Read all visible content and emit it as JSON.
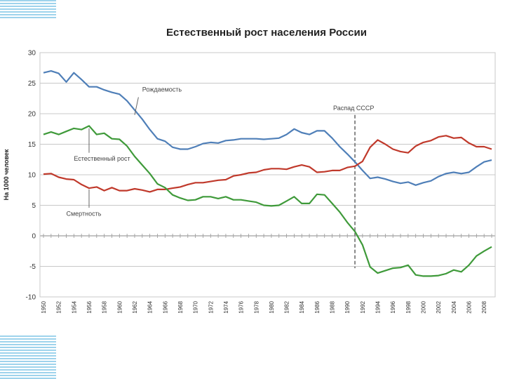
{
  "chart_data": {
    "type": "line",
    "title": "Естественный рост населения России",
    "ylabel": "На 1000 человек",
    "xlabel": "",
    "ylim": [
      -10,
      30
    ],
    "xlim": [
      1950,
      2009
    ],
    "yticks": [
      30,
      25,
      20,
      15,
      10,
      5,
      0,
      -5,
      -10
    ],
    "xticks": [
      1950,
      1952,
      1954,
      1956,
      1958,
      1960,
      1962,
      1964,
      1966,
      1968,
      1970,
      1972,
      1974,
      1976,
      1978,
      1980,
      1982,
      1984,
      1986,
      1988,
      1990,
      1992,
      1994,
      1996,
      1998,
      2000,
      2002,
      2004,
      2006,
      2008
    ],
    "grid": true,
    "colors": {
      "birth": "#4f7fb8",
      "death": "#c0392b",
      "natural": "#3f9a3a"
    },
    "annotations": [
      {
        "text": "Рождаемость",
        "series": "birth"
      },
      {
        "text": "Естественный рост",
        "series": "natural"
      },
      {
        "text": "Смертность",
        "series": "death"
      },
      {
        "text": "Распад СССР",
        "x": 1991
      }
    ],
    "series": [
      {
        "key": "birth",
        "values": [
          [
            1950,
            26.7
          ],
          [
            1951,
            27.0
          ],
          [
            1952,
            26.6
          ],
          [
            1953,
            25.2
          ],
          [
            1954,
            26.7
          ],
          [
            1955,
            25.6
          ],
          [
            1956,
            24.4
          ],
          [
            1957,
            24.4
          ],
          [
            1958,
            23.9
          ],
          [
            1959,
            23.5
          ],
          [
            1960,
            23.2
          ],
          [
            1961,
            22.1
          ],
          [
            1962,
            20.6
          ],
          [
            1963,
            19.1
          ],
          [
            1964,
            17.4
          ],
          [
            1965,
            15.9
          ],
          [
            1966,
            15.5
          ],
          [
            1967,
            14.5
          ],
          [
            1968,
            14.2
          ],
          [
            1969,
            14.2
          ],
          [
            1970,
            14.6
          ],
          [
            1971,
            15.1
          ],
          [
            1972,
            15.3
          ],
          [
            1973,
            15.2
          ],
          [
            1974,
            15.6
          ],
          [
            1975,
            15.7
          ],
          [
            1976,
            15.9
          ],
          [
            1977,
            15.9
          ],
          [
            1978,
            15.9
          ],
          [
            1979,
            15.8
          ],
          [
            1980,
            15.9
          ],
          [
            1981,
            16.0
          ],
          [
            1982,
            16.6
          ],
          [
            1983,
            17.5
          ],
          [
            1984,
            16.9
          ],
          [
            1985,
            16.6
          ],
          [
            1986,
            17.2
          ],
          [
            1987,
            17.2
          ],
          [
            1988,
            16.0
          ],
          [
            1989,
            14.6
          ],
          [
            1990,
            13.4
          ],
          [
            1991,
            12.1
          ],
          [
            1992,
            10.7
          ],
          [
            1993,
            9.4
          ],
          [
            1994,
            9.6
          ],
          [
            1995,
            9.3
          ],
          [
            1996,
            8.9
          ],
          [
            1997,
            8.6
          ],
          [
            1998,
            8.8
          ],
          [
            1999,
            8.3
          ],
          [
            2000,
            8.7
          ],
          [
            2001,
            9.0
          ],
          [
            2002,
            9.7
          ],
          [
            2003,
            10.2
          ],
          [
            2004,
            10.4
          ],
          [
            2005,
            10.2
          ],
          [
            2006,
            10.4
          ],
          [
            2007,
            11.3
          ],
          [
            2008,
            12.1
          ],
          [
            2009,
            12.4
          ]
        ]
      },
      {
        "key": "death",
        "values": [
          [
            1950,
            10.1
          ],
          [
            1951,
            10.2
          ],
          [
            1952,
            9.6
          ],
          [
            1953,
            9.3
          ],
          [
            1954,
            9.2
          ],
          [
            1955,
            8.4
          ],
          [
            1956,
            7.8
          ],
          [
            1957,
            8.0
          ],
          [
            1958,
            7.4
          ],
          [
            1959,
            7.9
          ],
          [
            1960,
            7.4
          ],
          [
            1961,
            7.4
          ],
          [
            1962,
            7.7
          ],
          [
            1963,
            7.5
          ],
          [
            1964,
            7.2
          ],
          [
            1965,
            7.6
          ],
          [
            1966,
            7.6
          ],
          [
            1967,
            7.8
          ],
          [
            1968,
            8.0
          ],
          [
            1969,
            8.4
          ],
          [
            1970,
            8.7
          ],
          [
            1971,
            8.7
          ],
          [
            1972,
            8.9
          ],
          [
            1973,
            9.1
          ],
          [
            1974,
            9.2
          ],
          [
            1975,
            9.8
          ],
          [
            1976,
            10.0
          ],
          [
            1977,
            10.3
          ],
          [
            1978,
            10.4
          ],
          [
            1979,
            10.8
          ],
          [
            1980,
            11.0
          ],
          [
            1981,
            11.0
          ],
          [
            1982,
            10.9
          ],
          [
            1983,
            11.3
          ],
          [
            1984,
            11.6
          ],
          [
            1985,
            11.3
          ],
          [
            1986,
            10.4
          ],
          [
            1987,
            10.5
          ],
          [
            1988,
            10.7
          ],
          [
            1989,
            10.7
          ],
          [
            1990,
            11.2
          ],
          [
            1991,
            11.4
          ],
          [
            1992,
            12.2
          ],
          [
            1993,
            14.5
          ],
          [
            1994,
            15.7
          ],
          [
            1995,
            15.0
          ],
          [
            1996,
            14.2
          ],
          [
            1997,
            13.8
          ],
          [
            1998,
            13.6
          ],
          [
            1999,
            14.7
          ],
          [
            2000,
            15.3
          ],
          [
            2001,
            15.6
          ],
          [
            2002,
            16.2
          ],
          [
            2003,
            16.4
          ],
          [
            2004,
            16.0
          ],
          [
            2005,
            16.1
          ],
          [
            2006,
            15.2
          ],
          [
            2007,
            14.6
          ],
          [
            2008,
            14.6
          ],
          [
            2009,
            14.2
          ]
        ]
      },
      {
        "key": "natural",
        "values": [
          [
            1950,
            16.6
          ],
          [
            1951,
            17.0
          ],
          [
            1952,
            16.6
          ],
          [
            1953,
            17.1
          ],
          [
            1954,
            17.6
          ],
          [
            1955,
            17.4
          ],
          [
            1956,
            18.0
          ],
          [
            1957,
            16.6
          ],
          [
            1958,
            16.8
          ],
          [
            1959,
            15.9
          ],
          [
            1960,
            15.8
          ],
          [
            1961,
            14.7
          ],
          [
            1962,
            13.0
          ],
          [
            1963,
            11.6
          ],
          [
            1964,
            10.2
          ],
          [
            1965,
            8.5
          ],
          [
            1966,
            7.9
          ],
          [
            1967,
            6.7
          ],
          [
            1968,
            6.2
          ],
          [
            1969,
            5.8
          ],
          [
            1970,
            5.9
          ],
          [
            1971,
            6.4
          ],
          [
            1972,
            6.4
          ],
          [
            1973,
            6.1
          ],
          [
            1974,
            6.4
          ],
          [
            1975,
            5.9
          ],
          [
            1976,
            5.9
          ],
          [
            1977,
            5.7
          ],
          [
            1978,
            5.5
          ],
          [
            1979,
            5.0
          ],
          [
            1980,
            4.9
          ],
          [
            1981,
            5.0
          ],
          [
            1982,
            5.7
          ],
          [
            1983,
            6.4
          ],
          [
            1984,
            5.3
          ],
          [
            1985,
            5.3
          ],
          [
            1986,
            6.8
          ],
          [
            1987,
            6.7
          ],
          [
            1988,
            5.3
          ],
          [
            1989,
            3.9
          ],
          [
            1990,
            2.2
          ],
          [
            1991,
            0.7
          ],
          [
            1992,
            -1.5
          ],
          [
            1993,
            -5.1
          ],
          [
            1994,
            -6.1
          ],
          [
            1995,
            -5.7
          ],
          [
            1996,
            -5.3
          ],
          [
            1997,
            -5.2
          ],
          [
            1998,
            -4.8
          ],
          [
            1999,
            -6.4
          ],
          [
            2000,
            -6.6
          ],
          [
            2001,
            -6.6
          ],
          [
            2002,
            -6.5
          ],
          [
            2003,
            -6.2
          ],
          [
            2004,
            -5.6
          ],
          [
            2005,
            -5.9
          ],
          [
            2006,
            -4.8
          ],
          [
            2007,
            -3.3
          ],
          [
            2008,
            -2.5
          ],
          [
            2009,
            -1.8
          ]
        ]
      }
    ]
  }
}
